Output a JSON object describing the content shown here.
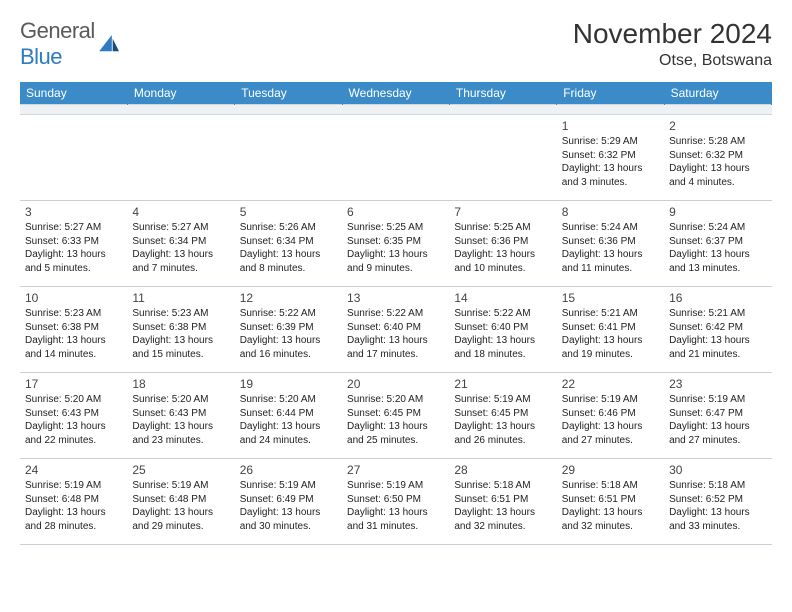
{
  "logo": {
    "word1": "General",
    "word2": "Blue"
  },
  "title": "November 2024",
  "location": "Otse, Botswana",
  "colors": {
    "header_bg": "#3b8bc8",
    "header_text": "#ffffff",
    "week_divider": "#5c7a99",
    "light_divider": "#c7d0d8",
    "spacer_bg": "#eef1f3",
    "logo_gray": "#5a5a5a",
    "logo_blue": "#2f7bbf",
    "text": "#222222",
    "background": "#ffffff"
  },
  "typography": {
    "title_fontsize": 28,
    "location_fontsize": 16,
    "dayhead_fontsize": 12,
    "daynum_fontsize": 12,
    "cell_fontsize": 10,
    "font_family": "Arial"
  },
  "day_headers": [
    "Sunday",
    "Monday",
    "Tuesday",
    "Wednesday",
    "Thursday",
    "Friday",
    "Saturday"
  ],
  "weeks": [
    [
      null,
      null,
      null,
      null,
      null,
      {
        "n": "1",
        "sunrise": "Sunrise: 5:29 AM",
        "sunset": "Sunset: 6:32 PM",
        "daylight": "Daylight: 13 hours and 3 minutes."
      },
      {
        "n": "2",
        "sunrise": "Sunrise: 5:28 AM",
        "sunset": "Sunset: 6:32 PM",
        "daylight": "Daylight: 13 hours and 4 minutes."
      }
    ],
    [
      {
        "n": "3",
        "sunrise": "Sunrise: 5:27 AM",
        "sunset": "Sunset: 6:33 PM",
        "daylight": "Daylight: 13 hours and 5 minutes."
      },
      {
        "n": "4",
        "sunrise": "Sunrise: 5:27 AM",
        "sunset": "Sunset: 6:34 PM",
        "daylight": "Daylight: 13 hours and 7 minutes."
      },
      {
        "n": "5",
        "sunrise": "Sunrise: 5:26 AM",
        "sunset": "Sunset: 6:34 PM",
        "daylight": "Daylight: 13 hours and 8 minutes."
      },
      {
        "n": "6",
        "sunrise": "Sunrise: 5:25 AM",
        "sunset": "Sunset: 6:35 PM",
        "daylight": "Daylight: 13 hours and 9 minutes."
      },
      {
        "n": "7",
        "sunrise": "Sunrise: 5:25 AM",
        "sunset": "Sunset: 6:36 PM",
        "daylight": "Daylight: 13 hours and 10 minutes."
      },
      {
        "n": "8",
        "sunrise": "Sunrise: 5:24 AM",
        "sunset": "Sunset: 6:36 PM",
        "daylight": "Daylight: 13 hours and 11 minutes."
      },
      {
        "n": "9",
        "sunrise": "Sunrise: 5:24 AM",
        "sunset": "Sunset: 6:37 PM",
        "daylight": "Daylight: 13 hours and 13 minutes."
      }
    ],
    [
      {
        "n": "10",
        "sunrise": "Sunrise: 5:23 AM",
        "sunset": "Sunset: 6:38 PM",
        "daylight": "Daylight: 13 hours and 14 minutes."
      },
      {
        "n": "11",
        "sunrise": "Sunrise: 5:23 AM",
        "sunset": "Sunset: 6:38 PM",
        "daylight": "Daylight: 13 hours and 15 minutes."
      },
      {
        "n": "12",
        "sunrise": "Sunrise: 5:22 AM",
        "sunset": "Sunset: 6:39 PM",
        "daylight": "Daylight: 13 hours and 16 minutes."
      },
      {
        "n": "13",
        "sunrise": "Sunrise: 5:22 AM",
        "sunset": "Sunset: 6:40 PM",
        "daylight": "Daylight: 13 hours and 17 minutes."
      },
      {
        "n": "14",
        "sunrise": "Sunrise: 5:22 AM",
        "sunset": "Sunset: 6:40 PM",
        "daylight": "Daylight: 13 hours and 18 minutes."
      },
      {
        "n": "15",
        "sunrise": "Sunrise: 5:21 AM",
        "sunset": "Sunset: 6:41 PM",
        "daylight": "Daylight: 13 hours and 19 minutes."
      },
      {
        "n": "16",
        "sunrise": "Sunrise: 5:21 AM",
        "sunset": "Sunset: 6:42 PM",
        "daylight": "Daylight: 13 hours and 21 minutes."
      }
    ],
    [
      {
        "n": "17",
        "sunrise": "Sunrise: 5:20 AM",
        "sunset": "Sunset: 6:43 PM",
        "daylight": "Daylight: 13 hours and 22 minutes."
      },
      {
        "n": "18",
        "sunrise": "Sunrise: 5:20 AM",
        "sunset": "Sunset: 6:43 PM",
        "daylight": "Daylight: 13 hours and 23 minutes."
      },
      {
        "n": "19",
        "sunrise": "Sunrise: 5:20 AM",
        "sunset": "Sunset: 6:44 PM",
        "daylight": "Daylight: 13 hours and 24 minutes."
      },
      {
        "n": "20",
        "sunrise": "Sunrise: 5:20 AM",
        "sunset": "Sunset: 6:45 PM",
        "daylight": "Daylight: 13 hours and 25 minutes."
      },
      {
        "n": "21",
        "sunrise": "Sunrise: 5:19 AM",
        "sunset": "Sunset: 6:45 PM",
        "daylight": "Daylight: 13 hours and 26 minutes."
      },
      {
        "n": "22",
        "sunrise": "Sunrise: 5:19 AM",
        "sunset": "Sunset: 6:46 PM",
        "daylight": "Daylight: 13 hours and 27 minutes."
      },
      {
        "n": "23",
        "sunrise": "Sunrise: 5:19 AM",
        "sunset": "Sunset: 6:47 PM",
        "daylight": "Daylight: 13 hours and 27 minutes."
      }
    ],
    [
      {
        "n": "24",
        "sunrise": "Sunrise: 5:19 AM",
        "sunset": "Sunset: 6:48 PM",
        "daylight": "Daylight: 13 hours and 28 minutes."
      },
      {
        "n": "25",
        "sunrise": "Sunrise: 5:19 AM",
        "sunset": "Sunset: 6:48 PM",
        "daylight": "Daylight: 13 hours and 29 minutes."
      },
      {
        "n": "26",
        "sunrise": "Sunrise: 5:19 AM",
        "sunset": "Sunset: 6:49 PM",
        "daylight": "Daylight: 13 hours and 30 minutes."
      },
      {
        "n": "27",
        "sunrise": "Sunrise: 5:19 AM",
        "sunset": "Sunset: 6:50 PM",
        "daylight": "Daylight: 13 hours and 31 minutes."
      },
      {
        "n": "28",
        "sunrise": "Sunrise: 5:18 AM",
        "sunset": "Sunset: 6:51 PM",
        "daylight": "Daylight: 13 hours and 32 minutes."
      },
      {
        "n": "29",
        "sunrise": "Sunrise: 5:18 AM",
        "sunset": "Sunset: 6:51 PM",
        "daylight": "Daylight: 13 hours and 32 minutes."
      },
      {
        "n": "30",
        "sunrise": "Sunrise: 5:18 AM",
        "sunset": "Sunset: 6:52 PM",
        "daylight": "Daylight: 13 hours and 33 minutes."
      }
    ]
  ]
}
